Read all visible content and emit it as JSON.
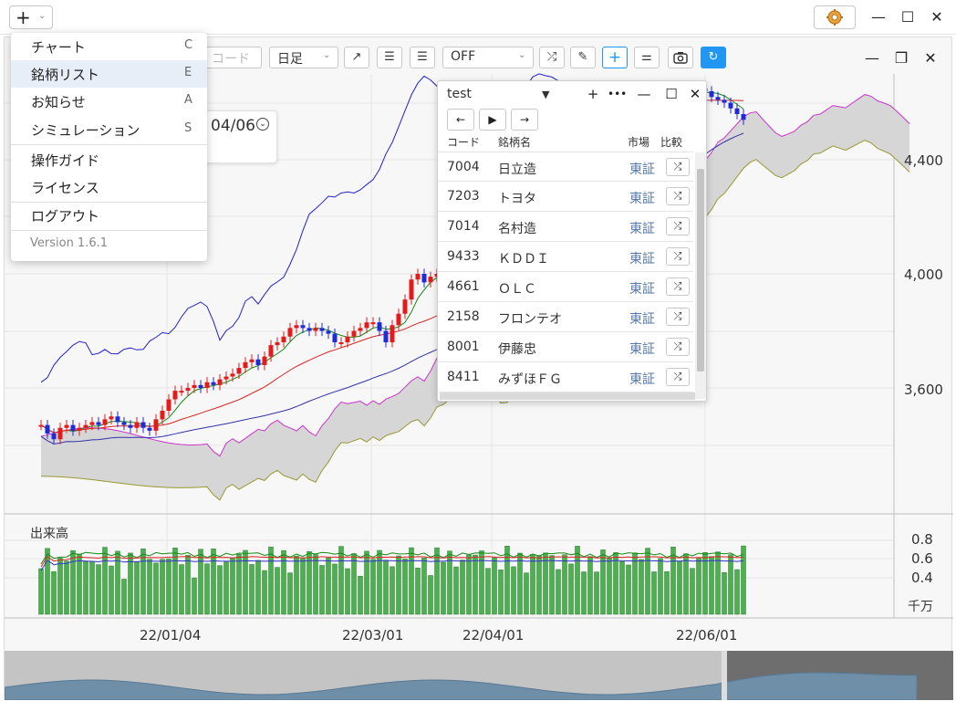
{
  "app": {
    "add_label": "+",
    "gear_icon": "gear-icon",
    "window_controls": [
      "minimize-icon",
      "maximize-icon",
      "close-icon"
    ]
  },
  "menu": {
    "items": [
      {
        "label": "チャート",
        "key": "C"
      },
      {
        "label": "銘柄リスト",
        "key": "E"
      },
      {
        "label": "お知らせ",
        "key": "A"
      },
      {
        "label": "シミュレーション",
        "key": "S"
      },
      {
        "label": "操作ガイド",
        "key": ""
      },
      {
        "label": "ライセンス",
        "key": ""
      },
      {
        "label": "ログアウト",
        "key": ""
      }
    ],
    "version": "Version 1.6.1"
  },
  "toolbar": {
    "code_placeholder": "コード",
    "timeframe": "日足",
    "indicator": "OFF"
  },
  "info_card": {
    "date": "04/06"
  },
  "list_panel": {
    "title": "test",
    "headers": {
      "code": "コード",
      "name": "銘柄名",
      "market": "市場",
      "compare": "比較"
    },
    "rows": [
      {
        "code": "7004",
        "name": "日立造",
        "market": "東証"
      },
      {
        "code": "7203",
        "name": "トヨタ",
        "market": "東証"
      },
      {
        "code": "7014",
        "name": "名村造",
        "market": "東証"
      },
      {
        "code": "9433",
        "name": "ＫＤＤＩ",
        "market": "東証"
      },
      {
        "code": "4661",
        "name": "ＯＬＣ",
        "market": "東証"
      },
      {
        "code": "2158",
        "name": "フロンテオ",
        "market": "東証"
      },
      {
        "code": "8001",
        "name": "伊藤忠",
        "market": "東証"
      },
      {
        "code": "8411",
        "name": "みずほＦＧ",
        "market": "東証"
      }
    ]
  },
  "chart": {
    "price_ticks": [
      "4,400",
      "4,000",
      "3,600"
    ],
    "volume_label": "出来高",
    "volume_ticks": [
      "0.8",
      "0.6",
      "0.4"
    ],
    "volume_unit": "千万",
    "date_ticks": [
      "22/01/04",
      "22/03/01",
      "22/04/01",
      "22/06/01"
    ]
  },
  "chart_data": {
    "type": "candlestick",
    "price_ticks": [
      4400,
      4000,
      3600
    ],
    "closes": [
      3470,
      3440,
      3420,
      3460,
      3470,
      3450,
      3460,
      3470,
      3480,
      3470,
      3490,
      3500,
      3480,
      3470,
      3460,
      3480,
      3460,
      3450,
      3490,
      3520,
      3560,
      3590,
      3590,
      3600,
      3610,
      3600,
      3620,
      3610,
      3630,
      3640,
      3650,
      3670,
      3690,
      3700,
      3680,
      3710,
      3750,
      3760,
      3780,
      3810,
      3820,
      3810,
      3800,
      3810,
      3800,
      3790,
      3760,
      3760,
      3780,
      3800,
      3810,
      3830,
      3830,
      3800,
      3760,
      3820,
      3860,
      3910,
      3980,
      4000,
      3970,
      3990,
      4000,
      3990,
      3980,
      4000,
      4030,
      4080,
      4130,
      4150,
      4180,
      4220,
      4240,
      4280,
      4310,
      4330,
      4360,
      4390,
      4410,
      4440,
      4480,
      4500,
      4530,
      4560,
      4590,
      4610,
      4620,
      4600,
      4580,
      4560,
      4550,
      4560,
      4570,
      4590,
      4600,
      4620,
      4620,
      4630,
      4640,
      4630,
      4620,
      4630,
      4640,
      4650,
      4640,
      4620,
      4610,
      4600,
      4580,
      4560,
      4540
    ],
    "volume_ticks": [
      0.8,
      0.6,
      0.4
    ],
    "volume_unit": "千万",
    "dates": [
      "22/01/04",
      "22/03/01",
      "22/04/01",
      "22/06/01"
    ]
  }
}
